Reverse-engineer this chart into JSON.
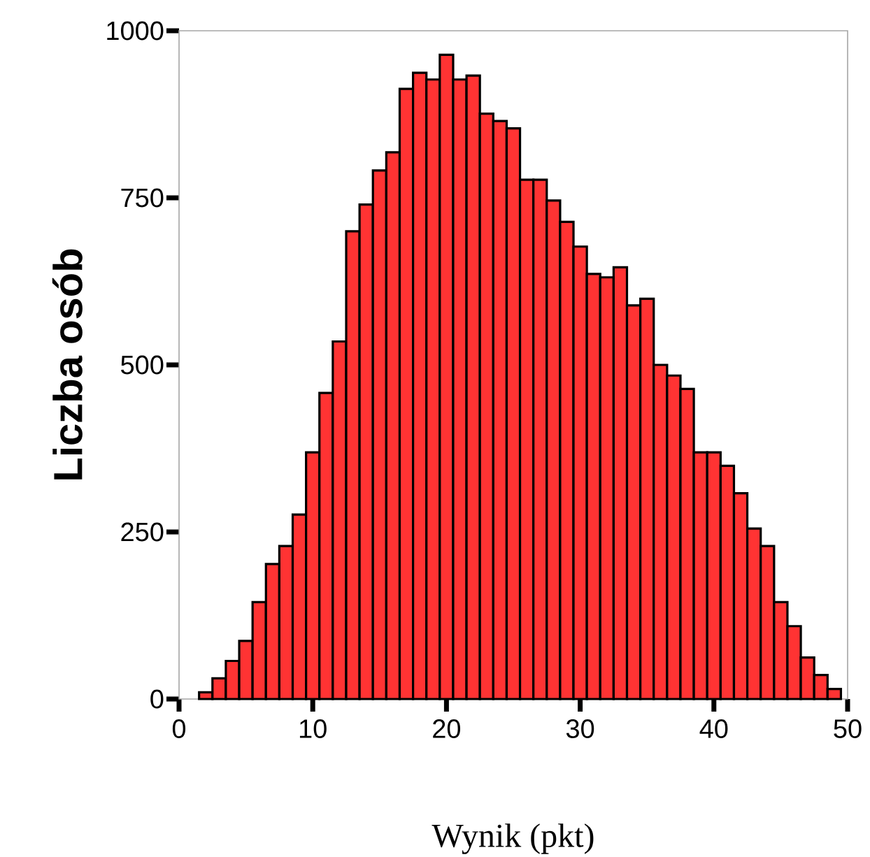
{
  "chart_data": {
    "type": "histogram",
    "xlabel": "Wynik (pkt)",
    "ylabel": "Liczba osób",
    "bins": [
      1.5,
      2.5,
      3.5,
      4.5,
      5.5,
      6.5,
      7.5,
      8.5,
      9.5,
      10.5,
      11.5,
      12.5,
      13.5,
      14.5,
      15.5,
      16.5,
      17.5,
      18.5,
      19.5,
      20.5,
      21.5,
      22.5,
      23.5,
      24.5,
      25.5,
      26.5,
      27.5,
      28.5,
      29.5,
      30.5,
      31.5,
      32.5,
      33.5,
      34.5,
      35.5,
      36.5,
      37.5,
      38.5,
      39.5,
      40.5,
      41.5,
      42.5,
      43.5,
      44.5,
      45.5,
      46.5,
      47.5,
      48.5,
      49.5
    ],
    "values": [
      10,
      31,
      57,
      87,
      145,
      202,
      229,
      276,
      369,
      458,
      535,
      700,
      740,
      791,
      818,
      913,
      937,
      927,
      964,
      927,
      933,
      876,
      865,
      854,
      777,
      777,
      746,
      714,
      677,
      636,
      631,
      646,
      589,
      599,
      500,
      484,
      464,
      369,
      369,
      349,
      308,
      255,
      229,
      145,
      109,
      62,
      36,
      15
    ],
    "color": "#ff3333",
    "xlim": [
      0,
      50
    ],
    "xticks": [
      0,
      10,
      20,
      30,
      40,
      50
    ],
    "ylim": [
      0,
      1000
    ],
    "yticks": [
      0,
      250,
      500,
      750,
      1000
    ]
  }
}
